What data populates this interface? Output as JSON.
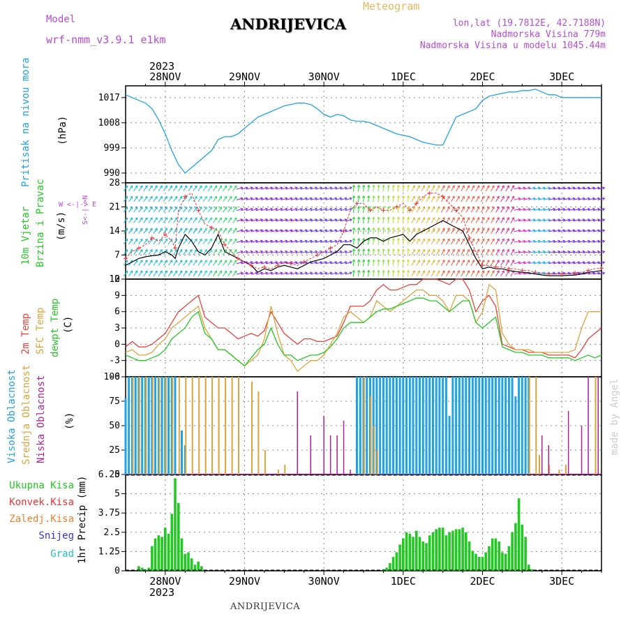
{
  "header": {
    "model_label": "Model",
    "model_name": "wrf-nmm_v3.9.1 e1km",
    "title": "ANDRIJEVICA",
    "subtitle": "Meteogram",
    "coords": "lon,lat (19.7812E, 42.7188N)",
    "altitude": "Nadmorska Visina 779m",
    "model_altitude": "Nadmorska Visina u modelu 1045.44m",
    "footer": "ANDRIJEVICA",
    "credit": "made by Angel"
  },
  "time_axis": {
    "top_year": "2023",
    "bottom_year": "2023",
    "day_labels": [
      "28NOV",
      "29NOV",
      "30NOV",
      "1DEC",
      "2DEC",
      "3DEC"
    ],
    "hours_start": -12,
    "hours_end": 132
  },
  "panel_labels": {
    "pressure": {
      "name": "Pritisak na nivou mora",
      "unit": "(hPa)"
    },
    "wind": {
      "name1": "10m Vjetar",
      "name2": "Brzina i Pravac",
      "unit": "(m/s)",
      "compass": "W  <-|->  E",
      "compass2": "S<-|->N"
    },
    "temp": {
      "name1": "2m Temp",
      "name2": "SFC Temp",
      "name3": "dewpt Temp",
      "unit": "(C)"
    },
    "cloud": {
      "name1": "Visoka Oblacnost",
      "name2": "Srednja Oblacnost",
      "name3": "Niska Oblacnost",
      "unit": "(%)"
    },
    "precip": {
      "unit": "1hr Precip (mm)",
      "legend": [
        "Ukupna Kisa",
        "Konvek.Kisa",
        "Zaledj.Kisa",
        "Snijeg",
        "Grad"
      ]
    }
  },
  "colors": {
    "pressure": "#1fa2e6",
    "temp2m": "#e8413a",
    "sfc_temp": "#e0a33a",
    "dewpoint": "#22c922",
    "cloud_high": "#1fa2e6",
    "cloud_mid": "#dca43a",
    "cloud_low": "#b01f9a",
    "precip_total": "#22c922",
    "precip_conv": "#ee3333",
    "precip_frz": "#f08030",
    "precip_snow": "#3333ee",
    "precip_hail": "#22bfbf"
  },
  "chart_data": [
    {
      "type": "line",
      "title": "Pritisak na nivou mora",
      "ylabel": "(hPa)",
      "ylim": [
        986.5,
        1021.2
      ],
      "yticks": [
        990,
        999,
        1008,
        1017
      ],
      "x": [
        -12,
        -6,
        -4,
        -2,
        0,
        2,
        4,
        6,
        8,
        10,
        12,
        14,
        15,
        16,
        18,
        20,
        22,
        24,
        26,
        28,
        30,
        32,
        34,
        36,
        38,
        40,
        42,
        44,
        46,
        48,
        50,
        52,
        54,
        56,
        58,
        60,
        62,
        64,
        66,
        68,
        70,
        72,
        74,
        76,
        78,
        80,
        82,
        84,
        86,
        88,
        90,
        92,
        94,
        96,
        98,
        100,
        102,
        104,
        106,
        108,
        110,
        112,
        114,
        116,
        118,
        120,
        122,
        124,
        126,
        128,
        130,
        132
      ],
      "values": [
        1018,
        1015,
        1013,
        1009,
        1004,
        998,
        993,
        990,
        992,
        994,
        996,
        998,
        1000,
        1002,
        1003,
        1003,
        1004,
        1006,
        1008,
        1010,
        1011,
        1012,
        1013,
        1014,
        1014.5,
        1015,
        1015,
        1014.5,
        1013,
        1011,
        1010,
        1011,
        1010.5,
        1009,
        1008.5,
        1008.5,
        1008,
        1007,
        1006,
        1005,
        1004,
        1003.5,
        1003,
        1002,
        1001,
        1000.5,
        1000,
        1000,
        1005,
        1010,
        1011,
        1012,
        1013,
        1016,
        1017.5,
        1018,
        1018.5,
        1019,
        1019,
        1019.5,
        1019.5,
        1020,
        1019,
        1018,
        1018,
        1017,
        1017,
        1017,
        1017,
        1017,
        1017,
        1017
      ]
    },
    {
      "type": "line",
      "title": "10m Vjetar Brzina i Pravac",
      "ylabel": "(m/s)",
      "ylim": [
        0,
        28
      ],
      "yticks": [
        0,
        7,
        14,
        21,
        28
      ],
      "x": [
        -12,
        -10,
        -8,
        -6,
        -4,
        -2,
        0,
        2,
        3,
        4,
        6,
        8,
        10,
        12,
        14,
        16,
        18,
        20,
        22,
        24,
        26,
        28,
        30,
        32,
        34,
        36,
        38,
        40,
        42,
        44,
        46,
        48,
        50,
        52,
        54,
        56,
        58,
        60,
        62,
        64,
        66,
        68,
        70,
        72,
        74,
        75,
        76,
        78,
        80,
        82,
        84,
        86,
        88,
        90,
        92,
        94,
        96,
        98,
        100,
        102,
        104,
        106,
        108,
        110,
        112,
        114,
        116,
        118,
        120,
        122,
        124,
        126,
        128,
        130,
        132
      ],
      "values": [
        4,
        5,
        6,
        6.5,
        6.8,
        7,
        8,
        7,
        6,
        9,
        13,
        11,
        8,
        7,
        9,
        13,
        8,
        7,
        6,
        5,
        4,
        2,
        3,
        2.5,
        3.5,
        4,
        3.5,
        3,
        4,
        5,
        5.5,
        6,
        7,
        8,
        10,
        10,
        9,
        11,
        12,
        12,
        11,
        12,
        12.5,
        13,
        11,
        12,
        13,
        14,
        15,
        16,
        17,
        16,
        15,
        14,
        10,
        6,
        3,
        3.5,
        3,
        3,
        2.5,
        2.2,
        2,
        1.8,
        1.5,
        1.2,
        1,
        1,
        1,
        1.1,
        1.2,
        1.5,
        2,
        2.2,
        2.5
      ],
      "gusts": [
        6,
        8,
        9,
        10,
        12,
        11,
        13,
        11,
        9,
        20,
        24,
        25,
        20,
        16,
        15,
        14,
        10,
        8,
        6,
        5,
        4,
        3,
        3.5,
        3,
        4,
        5,
        4.5,
        4,
        5,
        6,
        7,
        8,
        9,
        10,
        14,
        20,
        22,
        22,
        20,
        21,
        20,
        20,
        21,
        22,
        20,
        21,
        22,
        24,
        25,
        25,
        24,
        22,
        20,
        18,
        12,
        8,
        4,
        4,
        3.5,
        3.5,
        3,
        3,
        2.5,
        2.5,
        2,
        1.8,
        1.5,
        1.5,
        1.5,
        1.6,
        1.8,
        2,
        2.5,
        3,
        3.2
      ]
    },
    {
      "type": "line",
      "title": "2m Temp / SFC Temp / dewpt Temp",
      "ylabel": "(C)",
      "ylim": [
        -6,
        12
      ],
      "yticks": [
        -6,
        -3,
        0,
        3,
        6,
        9,
        12
      ],
      "x": [
        -12,
        -10,
        -8,
        -6,
        -4,
        -2,
        0,
        2,
        4,
        6,
        8,
        10,
        12,
        14,
        16,
        18,
        20,
        22,
        24,
        26,
        28,
        30,
        32,
        34,
        36,
        38,
        40,
        42,
        44,
        46,
        48,
        50,
        52,
        54,
        56,
        58,
        60,
        62,
        64,
        66,
        68,
        70,
        72,
        74,
        76,
        78,
        80,
        82,
        84,
        86,
        88,
        90,
        92,
        94,
        96,
        98,
        100,
        102,
        104,
        106,
        108,
        110,
        112,
        114,
        116,
        118,
        120,
        122,
        124,
        126,
        128,
        130,
        132
      ],
      "series": [
        {
          "name": "2m Temp",
          "values": [
            -0.5,
            0.5,
            -0.5,
            -0.5,
            0,
            1,
            2,
            4,
            6,
            7,
            8,
            9,
            5,
            4,
            3,
            3,
            2,
            1,
            1.5,
            2,
            1.5,
            2.5,
            6,
            4,
            2,
            1,
            0,
            1,
            1,
            0.5,
            0.5,
            1,
            1.5,
            4,
            7,
            7,
            7,
            8,
            10,
            11,
            10,
            10,
            10.5,
            11,
            11,
            12,
            12,
            12,
            11.5,
            11,
            12,
            12,
            10,
            6,
            8,
            9,
            7,
            0,
            -0.5,
            -1,
            -1,
            -1.5,
            -1.5,
            -1.5,
            -2,
            -2,
            -2,
            -2,
            -2.5,
            -1,
            1,
            2,
            3
          ]
        },
        {
          "name": "SFC Temp",
          "values": [
            -1.5,
            -1,
            -2,
            -2,
            -1.5,
            0,
            1,
            3,
            4,
            5,
            6,
            7,
            3,
            1,
            -1,
            -1,
            -2,
            -3,
            -4,
            -3,
            -2,
            1,
            7,
            2,
            -2,
            -3,
            -5,
            -4,
            -3,
            -3,
            -2,
            0,
            2,
            5,
            6,
            5,
            4,
            5,
            8,
            7,
            6,
            7,
            8,
            9,
            10,
            10,
            9,
            9,
            8,
            6,
            9,
            9,
            8,
            4,
            6,
            11,
            10,
            2,
            0,
            -1,
            -1,
            -1,
            -1.5,
            -1.5,
            -1.5,
            -1.5,
            -1.5,
            -1.5,
            -1,
            3,
            6,
            6,
            6
          ]
        },
        {
          "name": "dewpt Temp",
          "values": [
            -2,
            -2.5,
            -3,
            -3,
            -2.5,
            -2,
            -1,
            1,
            2,
            3,
            5,
            6,
            2,
            1,
            -1,
            -1,
            -2,
            -3,
            -4,
            -2.5,
            -1,
            0,
            3,
            0,
            -2,
            -2,
            -3,
            -2.5,
            -2,
            -2,
            -1.5,
            -0.5,
            1,
            3,
            4,
            4,
            4,
            5,
            6,
            6.5,
            6.5,
            7,
            7.5,
            8,
            8.5,
            8.5,
            8,
            8,
            7,
            6,
            7,
            8,
            8,
            4,
            3,
            4,
            5,
            -0.5,
            -1,
            -1.5,
            -1.5,
            -2,
            -2,
            -2,
            -2.5,
            -2.5,
            -2.5,
            -2.5,
            -3,
            -2.5,
            -2,
            -2.5,
            -2
          ]
        }
      ]
    },
    {
      "type": "bar",
      "title": "Visoka / Srednja / Niska Oblacnost",
      "ylabel": "(%)",
      "ylim": [
        0,
        100
      ],
      "yticks": [
        0,
        25,
        50,
        75,
        100
      ],
      "series": [
        {
          "name": "Visoka Oblacnost",
          "x": [
            -12,
            -11,
            -10,
            -9,
            -8,
            -7,
            -6,
            -5,
            -4,
            -3,
            -2,
            -1,
            0,
            1,
            2,
            3,
            5,
            6,
            58,
            59,
            60,
            61,
            62,
            63,
            64,
            65,
            66,
            67,
            68,
            69,
            70,
            71,
            72,
            73,
            74,
            75,
            76,
            77,
            78,
            79,
            80,
            81,
            82,
            83,
            84,
            85,
            86,
            87,
            88,
            89,
            90,
            91,
            92,
            93,
            94,
            95,
            96,
            97,
            98,
            99,
            100,
            101,
            102,
            103,
            104,
            105,
            106,
            107,
            108,
            109,
            110
          ],
          "values": [
            78,
            100,
            100,
            100,
            100,
            100,
            100,
            100,
            100,
            100,
            100,
            100,
            100,
            100,
            100,
            100,
            45,
            30,
            100,
            100,
            100,
            100,
            100,
            100,
            100,
            100,
            100,
            100,
            100,
            100,
            100,
            100,
            100,
            100,
            100,
            100,
            100,
            100,
            100,
            100,
            100,
            100,
            100,
            100,
            100,
            100,
            60,
            100,
            100,
            100,
            100,
            100,
            100,
            100,
            100,
            100,
            100,
            100,
            100,
            100,
            100,
            100,
            100,
            100,
            100,
            100,
            80,
            100,
            100,
            100,
            100
          ]
        },
        {
          "name": "Srednja Oblacnost",
          "x": [
            -10,
            -8,
            -6,
            -4,
            -2,
            0,
            2,
            4,
            6,
            8,
            10,
            12,
            14,
            16,
            18,
            20,
            22,
            26,
            28,
            30,
            34,
            36,
            60,
            62,
            63,
            64,
            110,
            112,
            113,
            116,
            119,
            121,
            130
          ],
          "values": [
            100,
            100,
            100,
            100,
            100,
            100,
            100,
            100,
            100,
            100,
            100,
            100,
            100,
            100,
            100,
            100,
            100,
            95,
            85,
            25,
            5,
            10,
            100,
            80,
            50,
            25,
            100,
            100,
            20,
            10,
            5,
            10,
            100
          ]
        },
        {
          "name": "Niska Oblacnost",
          "x": [
            40,
            44,
            48,
            50,
            52,
            54,
            56,
            114,
            116,
            122,
            126,
            128,
            131
          ],
          "values": [
            85,
            40,
            60,
            40,
            40,
            55,
            5,
            40,
            30,
            65,
            50,
            100,
            100
          ]
        }
      ]
    },
    {
      "type": "bar",
      "title": "1hr Precip",
      "ylabel": "1hr Precip (mm)",
      "ylim": [
        0,
        6.25
      ],
      "yticks": [
        0,
        1.25,
        2.5,
        3.75,
        5,
        6.25
      ],
      "series": [
        {
          "name": "Ukupna Kisa",
          "x": [
            -12,
            -11,
            -10,
            -9,
            -8,
            -7,
            -6,
            -5,
            -4,
            -3,
            -2,
            -1,
            0,
            1,
            2,
            3,
            4,
            5,
            6,
            7,
            8,
            9,
            10,
            11,
            12,
            13,
            14,
            15,
            16,
            66,
            67,
            68,
            69,
            70,
            71,
            72,
            73,
            74,
            75,
            76,
            77,
            78,
            79,
            80,
            81,
            82,
            83,
            84,
            85,
            86,
            87,
            88,
            89,
            90,
            91,
            92,
            93,
            94,
            95,
            96,
            97,
            98,
            99,
            100,
            101,
            102,
            103,
            104,
            105,
            106,
            107,
            108,
            109,
            110,
            111,
            112,
            113,
            114
          ],
          "values": [
            0,
            0,
            0,
            0,
            0.3,
            0.2,
            0.1,
            0.2,
            1.6,
            2.1,
            2.3,
            2.2,
            2.8,
            2.4,
            3.7,
            6,
            4.4,
            2.1,
            1.1,
            1.2,
            0.8,
            0.4,
            0.6,
            0.3,
            0,
            0,
            0,
            0,
            0,
            0.1,
            0.2,
            0.5,
            0.9,
            1.2,
            1.7,
            2.1,
            2.5,
            2.4,
            2.2,
            2.6,
            2.2,
            1.9,
            1.8,
            2.3,
            2.5,
            2.7,
            2.8,
            2.8,
            2.3,
            2.5,
            2.6,
            2.7,
            2.7,
            2.8,
            2.5,
            1.9,
            1.3,
            1.1,
            0.9,
            0.9,
            1.2,
            1.6,
            2.1,
            2.1,
            1.9,
            1.2,
            1.1,
            1.6,
            2.5,
            3.1,
            4.7,
            3,
            2.2,
            0.4,
            0.1,
            0,
            0,
            0
          ]
        }
      ]
    }
  ]
}
